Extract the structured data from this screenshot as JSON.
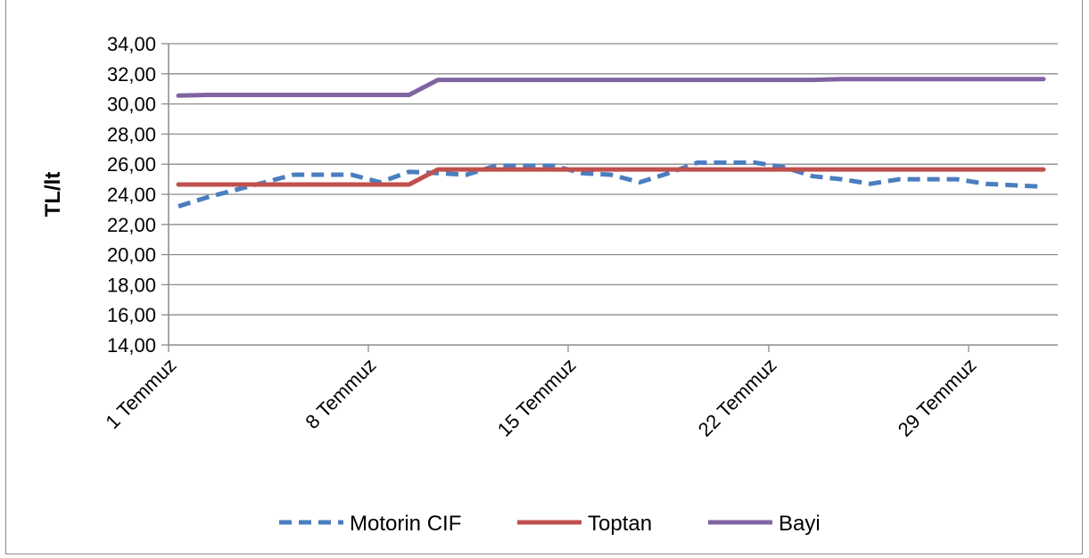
{
  "chart_data": {
    "type": "line",
    "ylabel": "TL/lt",
    "xlabel": "",
    "ylim": [
      14,
      34
    ],
    "ystep": 2,
    "y_ticks": [
      "14,00",
      "16,00",
      "18,00",
      "20,00",
      "22,00",
      "24,00",
      "26,00",
      "28,00",
      "30,00",
      "32,00",
      "34,00"
    ],
    "categories": [
      "1 Temmuz",
      "8 Temmuz",
      "15 Temmuz",
      "22 Temmuz",
      "29 Temmuz"
    ],
    "x": [
      1,
      2,
      3,
      4,
      5,
      6,
      7,
      8,
      9,
      10,
      11,
      12,
      13,
      14,
      15,
      16,
      17,
      18,
      19,
      20,
      21,
      22,
      23,
      24,
      25,
      26,
      27,
      28,
      29,
      30,
      31
    ],
    "grid": true,
    "legend_position": "bottom",
    "series": [
      {
        "name": "Motorin CIF",
        "style": "dashed",
        "color": "#4a7ec0",
        "values": [
          23.2,
          23.8,
          24.3,
          24.8,
          25.3,
          25.3,
          25.3,
          24.8,
          25.5,
          25.4,
          25.3,
          25.9,
          25.9,
          25.9,
          25.4,
          25.3,
          24.8,
          25.4,
          26.1,
          26.1,
          26.1,
          25.8,
          25.2,
          25.0,
          24.7,
          25.0,
          25.0,
          25.0,
          24.7,
          24.6,
          24.5
        ]
      },
      {
        "name": "Toptan",
        "style": "solid",
        "color": "#c0504d",
        "values": [
          24.65,
          24.65,
          24.65,
          24.65,
          24.65,
          24.65,
          24.65,
          24.65,
          24.65,
          25.65,
          25.65,
          25.65,
          25.65,
          25.65,
          25.65,
          25.65,
          25.65,
          25.65,
          25.65,
          25.65,
          25.65,
          25.65,
          25.65,
          25.65,
          25.65,
          25.65,
          25.65,
          25.65,
          25.65,
          25.65,
          25.65
        ]
      },
      {
        "name": "Bayi",
        "style": "solid",
        "color": "#8064a2",
        "values": [
          30.55,
          30.6,
          30.6,
          30.6,
          30.6,
          30.6,
          30.6,
          30.6,
          30.6,
          31.6,
          31.6,
          31.6,
          31.6,
          31.6,
          31.6,
          31.6,
          31.6,
          31.6,
          31.6,
          31.6,
          31.6,
          31.6,
          31.6,
          31.65,
          31.65,
          31.65,
          31.65,
          31.65,
          31.65,
          31.65,
          31.65
        ]
      }
    ]
  }
}
